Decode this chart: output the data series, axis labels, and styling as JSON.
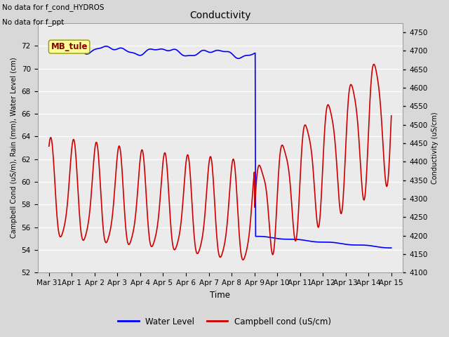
{
  "title": "Conductivity",
  "upper_left_text1": "No data for f_cond_HYDROS",
  "upper_left_text2": "No data for f_ppt",
  "xlabel": "Time",
  "ylabel_left": "Campbell Cond (uS/m), Rain (mm), Water Level (cm)",
  "ylabel_right": "Conductivity (uS/cm)",
  "ylim_left": [
    52,
    74
  ],
  "ylim_right": [
    4100,
    4775
  ],
  "yticks_left": [
    52,
    54,
    56,
    58,
    60,
    62,
    64,
    66,
    68,
    70,
    72
  ],
  "yticks_right": [
    4100,
    4150,
    4200,
    4250,
    4300,
    4350,
    4400,
    4450,
    4500,
    4550,
    4600,
    4650,
    4700,
    4750
  ],
  "bg_color": "#d8d8d8",
  "plot_bg_color": "#ebebeb",
  "grid_color": "#ffffff",
  "water_level_color": "#0000ff",
  "campbell_cond_color": "#cc0000",
  "annotation_box_color": "#ffff99",
  "annotation_text": "MB_tule",
  "annotation_text_color": "#880000",
  "legend_water_level": "Water Level",
  "legend_campbell": "Campbell cond (uS/cm)",
  "water_level_linewidth": 1.2,
  "campbell_linewidth": 1.2,
  "xtick_labels": [
    "Mar 31",
    "Apr 1",
    "Apr 2",
    "Apr 3",
    "Apr 4",
    "Apr 5",
    "Apr 6",
    "Apr 7",
    "Apr 8",
    "Apr 9",
    "Apr 10",
    "Apr 11",
    "Apr 12",
    "Apr 13",
    "Apr 14",
    "Apr 15"
  ],
  "xtick_positions": [
    0,
    1,
    2,
    3,
    4,
    5,
    6,
    7,
    8,
    9,
    10,
    11,
    12,
    13,
    14,
    15
  ]
}
